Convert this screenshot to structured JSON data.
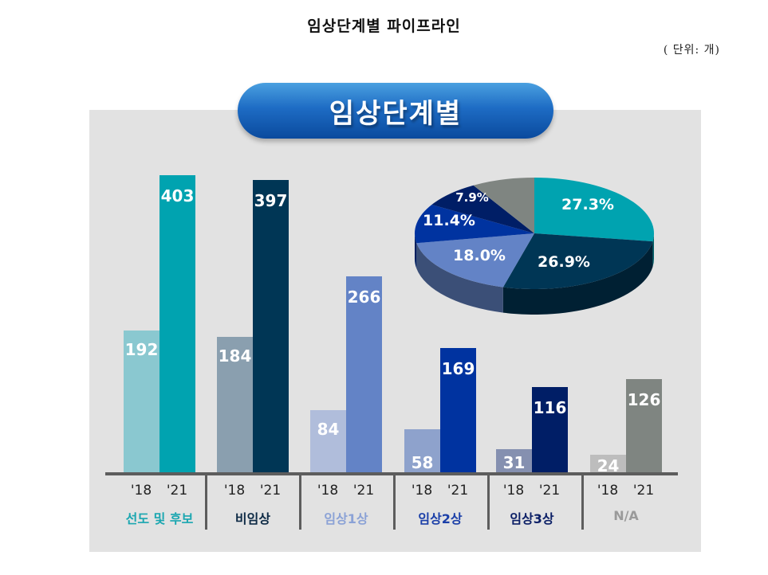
{
  "header": {
    "title": "임상단계별 파이프라인",
    "unit": "( 단위:  개)"
  },
  "banner": {
    "label": "임상단계별"
  },
  "colors": {
    "panel_bg": "#e2e2e2",
    "axis": "#5d5d5d",
    "banner": "#1e6cc4"
  },
  "chart_data": [
    {
      "type": "bar",
      "title": "임상단계별",
      "unit": "개",
      "categories": [
        "선도 및 후보",
        "비임상",
        "임상1상",
        "임상2상",
        "임상3상",
        "N/A"
      ],
      "x_sub_labels": [
        "'18",
        "'21"
      ],
      "series": [
        {
          "name": "'18",
          "values": [
            192,
            184,
            84,
            58,
            31,
            24
          ]
        },
        {
          "name": "'21",
          "values": [
            403,
            397,
            266,
            169,
            116,
            126
          ]
        }
      ],
      "bar_colors": {
        "'18": [
          "#8ac8d0",
          "#8a9faf",
          "#b0bddb",
          "#8ea2cc",
          "#8590b0",
          "#bdbdbd"
        ],
        "'21": [
          "#00a3b0",
          "#003655",
          "#6383c6",
          "#0033a0",
          "#001e66",
          "#7f8581"
        ]
      },
      "category_label_colors": [
        "#1aa6b0",
        "#0d2a45",
        "#8ba2d6",
        "#1b3fa8",
        "#0b1f66",
        "#9a9a9a"
      ],
      "ylim": [
        0,
        420
      ],
      "grid": false,
      "legend": "none"
    },
    {
      "type": "pie",
      "title": "임상단계별 비중 ('21)",
      "labels": [
        "선도 및 후보",
        "비임상",
        "임상1상",
        "임상2상",
        "임상3상",
        "N/A"
      ],
      "values": [
        27.3,
        26.9,
        18.0,
        11.4,
        7.9,
        8.5
      ],
      "value_labels": [
        "27.3%",
        "26.9%",
        "18.0%",
        "11.4%",
        "7.9%",
        ""
      ],
      "colors": [
        "#00a3b0",
        "#003655",
        "#6383c6",
        "#0033a0",
        "#001e66",
        "#7f8581"
      ]
    }
  ]
}
